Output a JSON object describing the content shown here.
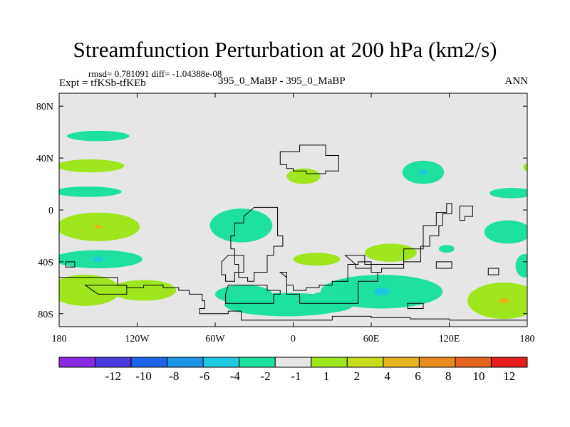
{
  "header": {
    "title": "Streamfunction Perturbation at 200 hPa (km2/s)",
    "stats": "rmsd= 0.781091 diff= -1.04388e-08",
    "expt": "Expt = tfKSb-tfKEb",
    "subtitle": "395_0_MaBP - 395_0_MaBP",
    "season": "ANN"
  },
  "chart_data": {
    "type": "heatmap",
    "title": "Streamfunction Perturbation at 200 hPa (km2/s)",
    "xlim": [
      -180,
      180
    ],
    "ylim": [
      -90,
      90
    ],
    "x_ticks": [
      {
        "value": -180,
        "label": "180"
      },
      {
        "value": -120,
        "label": "120W"
      },
      {
        "value": -60,
        "label": "60W"
      },
      {
        "value": 0,
        "label": "0"
      },
      {
        "value": 60,
        "label": "60E"
      },
      {
        "value": 120,
        "label": "120E"
      },
      {
        "value": 180,
        "label": "180"
      }
    ],
    "y_ticks": [
      {
        "value": 80,
        "label": "80N"
      },
      {
        "value": 40,
        "label": "40N"
      },
      {
        "value": 0,
        "label": "0"
      },
      {
        "value": -40,
        "label": "40S"
      },
      {
        "value": -80,
        "label": "80S"
      }
    ],
    "background_color": "#e6e6e6",
    "colorbar": {
      "colors": [
        "#8a2be2",
        "#4b3ce0",
        "#1e64e6",
        "#1e96e6",
        "#1ec8e0",
        "#1ee0a0",
        "#e6e6e6",
        "#a0e61e",
        "#c8dc1e",
        "#e6b41e",
        "#e68c1e",
        "#e6641e",
        "#e61e1e"
      ],
      "labels": [
        "-12",
        "-10",
        "-8",
        "-6",
        "-4",
        "-2",
        "-1",
        "1",
        "2",
        "4",
        "6",
        "8",
        "10",
        "12"
      ]
    },
    "anomalies": [
      {
        "lon": -150,
        "lat": 57,
        "rlon": 24,
        "rlat": 4,
        "level": -2
      },
      {
        "lon": -156,
        "lat": 34,
        "rlon": 26,
        "rlat": 5,
        "level": 2
      },
      {
        "lon": -158,
        "lat": 14,
        "rlon": 26,
        "rlat": 4,
        "level": -2
      },
      {
        "lon": -150,
        "lat": -13,
        "rlon": 32,
        "rlat": 11,
        "level": 2,
        "core": {
          "level": 6,
          "rlon": 3,
          "rlat": 1.5
        }
      },
      {
        "lon": -150,
        "lat": -38,
        "rlon": 34,
        "rlat": 7,
        "level": -2,
        "core": {
          "level": -4,
          "rlon": 4,
          "rlat": 2
        }
      },
      {
        "lon": -160,
        "lat": -62,
        "rlon": 27,
        "rlat": 12,
        "level": 2
      },
      {
        "lon": -115,
        "lat": -62,
        "rlon": 25,
        "rlat": 8,
        "level": 2
      },
      {
        "lon": -40,
        "lat": -12,
        "rlon": 24,
        "rlat": 13,
        "level": -2
      },
      {
        "lon": 8,
        "lat": 26,
        "rlon": 13,
        "rlat": 6,
        "level": 2
      },
      {
        "lon": 18,
        "lat": -38,
        "rlon": 18,
        "rlat": 5,
        "level": 2
      },
      {
        "lon": 75,
        "lat": -33,
        "rlon": 20,
        "rlat": 7,
        "level": 2
      },
      {
        "lon": 100,
        "lat": 29,
        "rlon": 16,
        "rlat": 9,
        "level": -2,
        "core": {
          "level": -4,
          "rlon": 3,
          "rlat": 2
        }
      },
      {
        "lon": 168,
        "lat": 13,
        "rlon": 17,
        "rlat": 4,
        "level": -2
      },
      {
        "lon": 180,
        "lat": 33,
        "rlon": 3,
        "rlat": 3,
        "level": 2
      },
      {
        "lon": 165,
        "lat": -17,
        "rlon": 18,
        "rlat": 9,
        "level": -2
      },
      {
        "lon": 178,
        "lat": -43,
        "rlon": 7,
        "rlat": 9,
        "level": -2
      },
      {
        "lon": 162,
        "lat": -70,
        "rlon": 28,
        "rlat": 14,
        "level": 2,
        "core": {
          "level": 6,
          "rlon": 4,
          "rlat": 2
        }
      },
      {
        "lon": 118,
        "lat": -30,
        "rlon": 6,
        "rlat": 3,
        "level": -2
      },
      {
        "lon": 68,
        "lat": -63,
        "rlon": 47,
        "rlat": 13,
        "level": -2,
        "core": {
          "level": -4,
          "rlon": 6,
          "rlat": 3
        }
      },
      {
        "lon": -5,
        "lat": -73,
        "rlon": 48,
        "rlat": 9,
        "level": -2
      },
      {
        "lon": -38,
        "lat": -65,
        "rlon": 22,
        "rlat": 7,
        "level": -2
      },
      {
        "lon": 28,
        "lat": -71,
        "rlon": 20,
        "rlat": 8,
        "level": -2
      }
    ],
    "outlines": [
      [
        [
          -10,
          45
        ],
        [
          5,
          45
        ],
        [
          5,
          50
        ],
        [
          25,
          50
        ],
        [
          25,
          42
        ],
        [
          35,
          40
        ],
        [
          35,
          30
        ],
        [
          25,
          28
        ],
        [
          10,
          30
        ],
        [
          0,
          32
        ],
        [
          -5,
          35
        ],
        [
          -10,
          40
        ]
      ],
      [
        [
          -30,
          2
        ],
        [
          -15,
          2
        ],
        [
          -12,
          -5
        ],
        [
          -12,
          -20
        ],
        [
          -8,
          -28
        ],
        [
          -15,
          -35
        ],
        [
          -20,
          -48
        ],
        [
          -30,
          -55
        ],
        [
          -35,
          -52
        ],
        [
          -42,
          -42
        ],
        [
          -45,
          -30
        ],
        [
          -48,
          -20
        ],
        [
          -45,
          -10
        ],
        [
          -38,
          -5
        ]
      ],
      [
        [
          -50,
          -35
        ],
        [
          -40,
          -35
        ],
        [
          -38,
          -48
        ],
        [
          -45,
          -55
        ],
        [
          -52,
          -50
        ],
        [
          -55,
          -40
        ]
      ],
      [
        [
          -10,
          -48
        ],
        [
          -5,
          -65
        ],
        [
          5,
          -72
        ],
        [
          35,
          -72
        ],
        [
          50,
          -55
        ],
        [
          65,
          -48
        ],
        [
          60,
          -40
        ],
        [
          50,
          -42
        ],
        [
          42,
          -55
        ],
        [
          30,
          -58
        ],
        [
          20,
          -60
        ],
        [
          10,
          -62
        ],
        [
          0,
          -58
        ],
        [
          -5,
          -52
        ]
      ],
      [
        [
          -50,
          -58
        ],
        [
          -30,
          -58
        ],
        [
          -20,
          -62
        ],
        [
          -10,
          -65
        ],
        [
          -15,
          -72
        ],
        [
          -35,
          -72
        ],
        [
          -52,
          -65
        ]
      ],
      [
        [
          40,
          -35
        ],
        [
          50,
          -35
        ],
        [
          55,
          -42
        ],
        [
          70,
          -42
        ],
        [
          85,
          -30
        ],
        [
          100,
          -12
        ],
        [
          110,
          -2
        ],
        [
          118,
          5
        ],
        [
          122,
          5
        ],
        [
          122,
          -3
        ],
        [
          115,
          -12
        ],
        [
          112,
          -20
        ],
        [
          105,
          -28
        ],
        [
          98,
          -40
        ],
        [
          85,
          -45
        ],
        [
          68,
          -48
        ],
        [
          60,
          -45
        ],
        [
          48,
          -42
        ]
      ],
      [
        [
          128,
          3
        ],
        [
          138,
          3
        ],
        [
          138,
          -5
        ],
        [
          132,
          -8
        ],
        [
          128,
          -4
        ]
      ],
      [
        [
          110,
          -40
        ],
        [
          122,
          -40
        ],
        [
          122,
          -45
        ],
        [
          110,
          -45
        ]
      ],
      [
        [
          150,
          -45
        ],
        [
          158,
          -45
        ],
        [
          158,
          -50
        ],
        [
          150,
          -50
        ]
      ],
      [
        [
          -178,
          -52
        ],
        [
          -140,
          -52
        ],
        [
          -135,
          -58
        ],
        [
          -128,
          -60
        ],
        [
          -115,
          -58
        ],
        [
          -100,
          -60
        ],
        [
          -88,
          -62
        ],
        [
          -80,
          -65
        ],
        [
          -70,
          -70
        ],
        [
          -68,
          -76
        ],
        [
          -72,
          -80
        ],
        [
          -50,
          -78
        ],
        [
          -40,
          -85
        ],
        [
          -20,
          -85
        ],
        [
          0,
          -85
        ],
        [
          30,
          -82
        ],
        [
          60,
          -83
        ],
        [
          90,
          -84
        ],
        [
          120,
          -85
        ],
        [
          180,
          -86
        ],
        [
          180,
          -90
        ],
        [
          -180,
          -90
        ],
        [
          -180,
          -52
        ]
      ],
      [
        [
          -160,
          -58
        ],
        [
          -135,
          -58
        ],
        [
          -128,
          -65
        ],
        [
          -150,
          -65
        ]
      ],
      [
        [
          -175,
          -40
        ],
        [
          -168,
          -40
        ],
        [
          -168,
          -44
        ],
        [
          -175,
          -44
        ]
      ],
      [
        [
          88,
          -72
        ],
        [
          100,
          -72
        ],
        [
          100,
          -76
        ],
        [
          88,
          -76
        ]
      ]
    ]
  }
}
